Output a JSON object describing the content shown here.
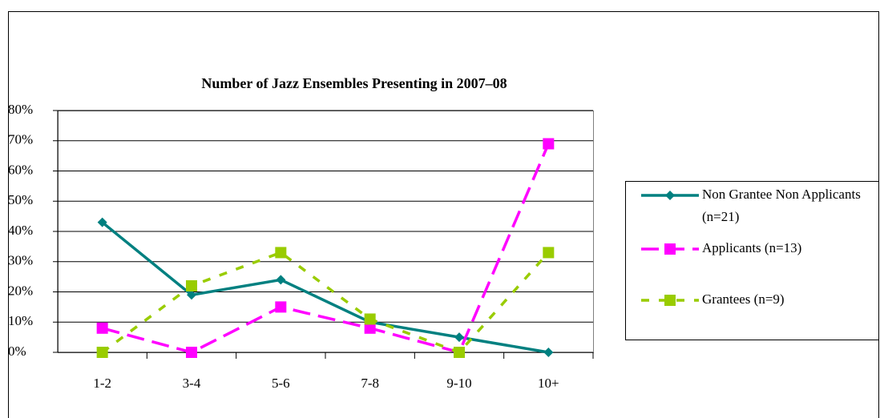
{
  "chart_data": {
    "type": "line",
    "title": "Number of Jazz Ensembles Presenting in 2007–08",
    "categories": [
      "1-2",
      "3-4",
      "5-6",
      "7-8",
      "9-10",
      "10+"
    ],
    "series": [
      {
        "name": "Non Grantee Non Applicants (n=21)",
        "color": "#008080",
        "marker": "diamond",
        "dash": "solid",
        "values": [
          43,
          19,
          24,
          10,
          5,
          0
        ]
      },
      {
        "name": "Applicants (n=13)",
        "color": "#ff00ff",
        "marker": "square",
        "dash": "dashed",
        "values": [
          8,
          0,
          15,
          8,
          0,
          69
        ]
      },
      {
        "name": "Grantees (n=9)",
        "color": "#99cc00",
        "marker": "square",
        "dash": "dotted",
        "values": [
          0,
          22,
          33,
          11,
          0,
          33
        ]
      }
    ],
    "ylim": [
      0,
      80
    ],
    "yticks": [
      {
        "value": 0,
        "label": "0%"
      },
      {
        "value": 10,
        "label": "10%"
      },
      {
        "value": 20,
        "label": "20%"
      },
      {
        "value": 30,
        "label": "30%"
      },
      {
        "value": 40,
        "label": "40%"
      },
      {
        "value": 50,
        "label": "50%"
      },
      {
        "value": 60,
        "label": "60%"
      },
      {
        "value": 70,
        "label": "70%"
      },
      {
        "value": 80,
        "label": "80%"
      }
    ],
    "grid": true,
    "legend": "right"
  }
}
